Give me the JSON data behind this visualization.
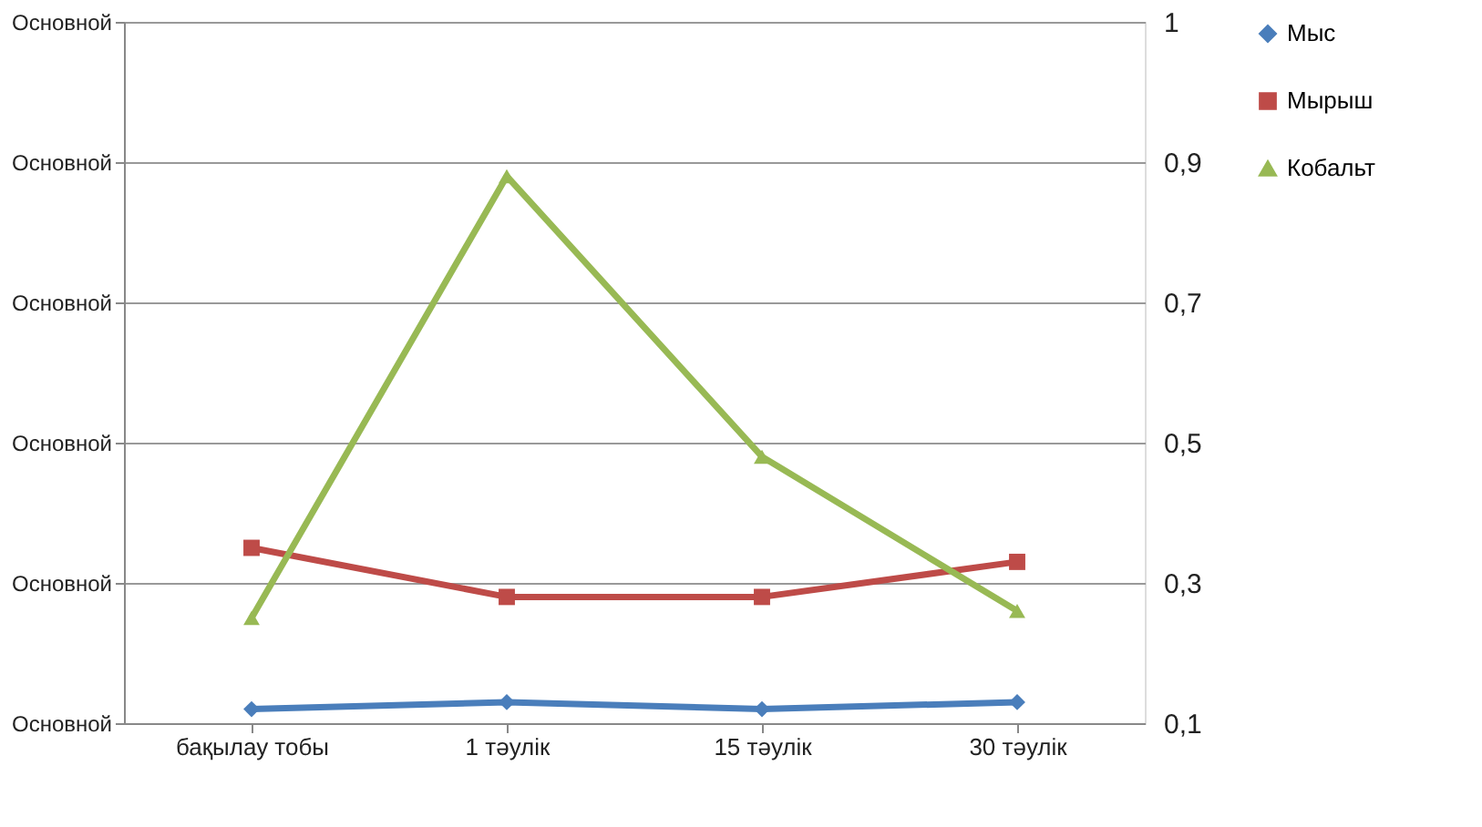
{
  "chart_data": {
    "type": "line",
    "categories": [
      "бақылау тобы",
      "1 тәулік",
      "15 тәулік",
      "30 тәулік"
    ],
    "series": [
      {
        "name": "Мыс",
        "color": "#4a7ebb",
        "marker": "diamond",
        "axis": "y2",
        "values": [
          0.12,
          0.13,
          0.12,
          0.13
        ]
      },
      {
        "name": "Мырыш",
        "color": "#be4b48",
        "marker": "square",
        "axis": "y2",
        "values": [
          0.35,
          0.28,
          0.28,
          0.33
        ]
      },
      {
        "name": "Кобальт",
        "color": "#98b954",
        "marker": "triangle",
        "axis": "y2",
        "values": [
          0.25,
          0.88,
          0.48,
          0.26
        ]
      }
    ],
    "annotations": [
      "Основной",
      "Основной",
      "Основной",
      "Основной",
      "Основной",
      "Основной"
    ],
    "y2lim": [
      0.1,
      1.1
    ],
    "y2ticks": [
      {
        "value": 0.1,
        "label": "0,1"
      },
      {
        "value": 0.3,
        "label": "0,3"
      },
      {
        "value": 0.5,
        "label": "0,5"
      },
      {
        "value": 0.7,
        "label": "0,7"
      },
      {
        "value": 0.9,
        "label": "0,9"
      },
      {
        "value": 1.1,
        "label": "1"
      }
    ],
    "grid": "y",
    "legend": "right",
    "line_style": "solid"
  }
}
